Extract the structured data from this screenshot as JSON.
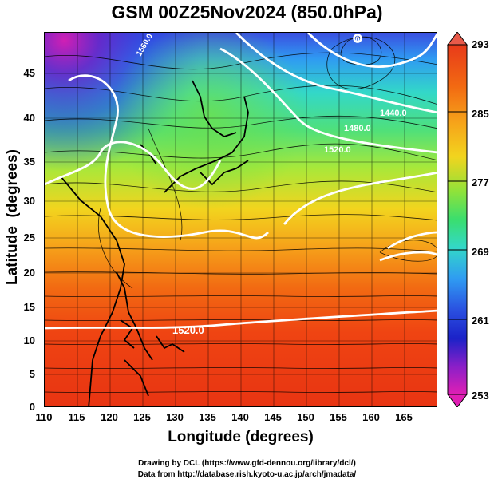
{
  "title": "GSM 00Z25Nov2024 (850.0hPa)",
  "axes": {
    "xlabel": "Longitude (degrees)",
    "ylabel": "Latitude  (degrees)",
    "xticks": [
      "110",
      "115",
      "120",
      "125",
      "130",
      "135",
      "140",
      "145",
      "150",
      "155",
      "160",
      "165"
    ],
    "yticks": [
      "45",
      "40",
      "35",
      "30",
      "25",
      "20",
      "15",
      "10",
      "5",
      "0"
    ],
    "xlim": [
      110,
      170
    ],
    "ylim": [
      0,
      50
    ]
  },
  "colorbar": {
    "labels": [
      "293",
      "285",
      "277",
      "269",
      "261",
      "253"
    ],
    "range": [
      253,
      293
    ]
  },
  "contour_labels": [
    "1520.0",
    "1520.0",
    "1480.0",
    "1440.0",
    "1560.0"
  ],
  "markers": {
    "low_center": "0"
  },
  "footer": {
    "line1": "Drawing by DCL (https://www.gfd-dennou.org/library/dcl/)",
    "line2": "Data from http://database.rish.kyoto-u.ac.jp/arch/jmadata/"
  }
}
